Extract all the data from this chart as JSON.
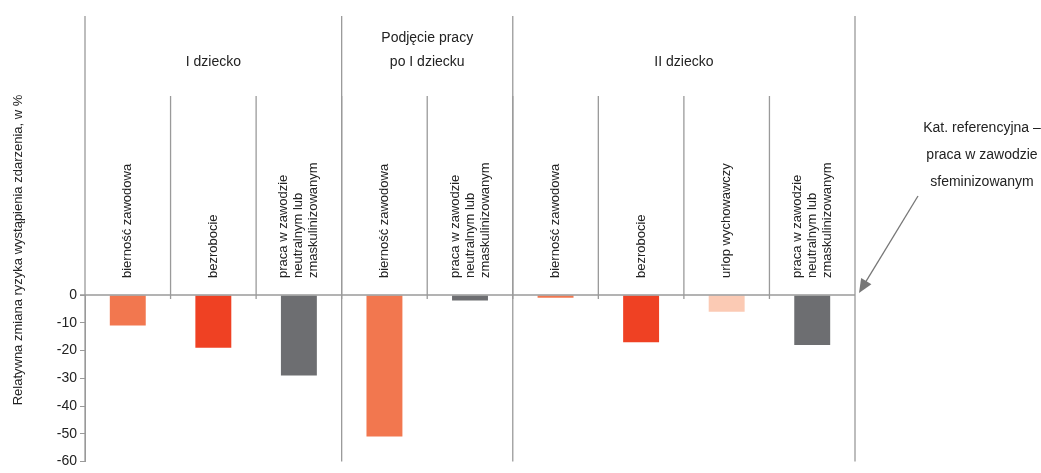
{
  "chart_data": {
    "type": "bar",
    "ylabel": "Relatywna zmiana ryzyka wystąpienia zdarzenia, w %",
    "categories": [
      "bierność zawodowa",
      "bezrobocie",
      "praca w zawodzie neutralnym lub zmaskulinizowanym",
      "bierność zawodowa",
      "praca w zawodzie neutralnym lub zmaskulinizowanym",
      "bierność zawodowa",
      "bezrobocie",
      "urlop wychowawczy",
      "praca w zawodzie neutralnym lub zmaskulinizowanym"
    ],
    "values": [
      -11,
      -19,
      -29,
      -51,
      -2,
      -1,
      -17,
      -6,
      -18
    ],
    "colors": [
      "#f2774f",
      "#ef4123",
      "#6d6e71",
      "#f2774f",
      "#6d6e71",
      "#f2774f",
      "#ef4123",
      "#fbcab4",
      "#6d6e71"
    ],
    "ylim": [
      -60,
      0
    ],
    "yticks": [
      -60,
      -50,
      -40,
      -30,
      -20,
      -10,
      0
    ],
    "annotations": [
      "I dziecko",
      "Podjęcie pracy po I dziecku",
      "II dziecko",
      "Kat. referencyjna – praca w zawodzie sfeminizowanym"
    ]
  }
}
